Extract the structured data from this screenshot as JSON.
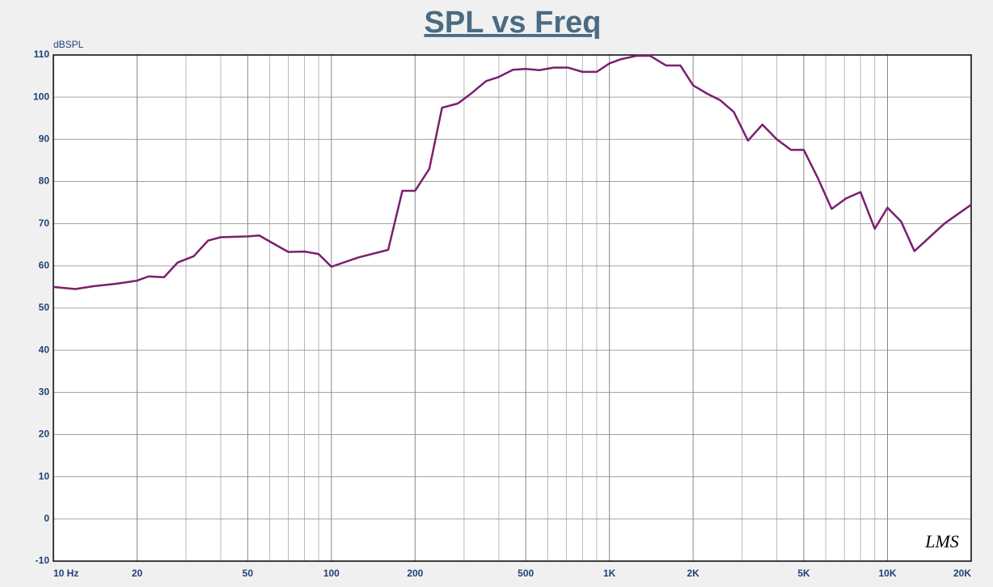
{
  "chart_data": {
    "type": "line",
    "title": "SPL vs Freq",
    "y_label": "dBSPL",
    "watermark": "LMS",
    "x_scale": "log",
    "grid": true,
    "color": "#7b1f6e",
    "x": [
      10,
      12,
      14,
      17,
      20,
      22,
      25,
      28,
      32,
      36,
      40,
      50,
      55,
      63,
      70,
      80,
      90,
      100,
      125,
      160,
      180,
      200,
      225,
      250,
      285,
      320,
      360,
      400,
      450,
      500,
      560,
      630,
      710,
      800,
      900,
      1000,
      1100,
      1250,
      1400,
      1600,
      1800,
      2000,
      2250,
      2500,
      2800,
      3150,
      3550,
      4000,
      4500,
      5000,
      5600,
      6300,
      7100,
      8000,
      9000,
      10000,
      11200,
      12500,
      16000,
      20000
    ],
    "values": [
      55,
      54.5,
      55.2,
      55.8,
      56.5,
      57.5,
      57.3,
      60.8,
      62.3,
      66,
      66.8,
      67,
      67.2,
      65,
      63.3,
      63.4,
      62.8,
      59.8,
      62,
      63.8,
      77.8,
      77.8,
      83,
      97.5,
      98.5,
      101,
      103.8,
      104.8,
      106.5,
      106.7,
      106.4,
      107,
      107,
      106,
      106,
      108,
      109,
      109.8,
      109.8,
      107.5,
      107.5,
      102.8,
      100.8,
      99.3,
      96.5,
      89.7,
      93.5,
      90,
      87.5,
      87.5,
      81,
      73.5,
      76,
      77.5,
      68.8,
      73.8,
      70.5,
      63.5,
      70,
      74.5
    ],
    "xlim": [
      10,
      20000
    ],
    "ylim": [
      -10,
      110
    ],
    "xticks": [
      {
        "value": 10,
        "label": "10  Hz"
      },
      20,
      50,
      100,
      200,
      500,
      {
        "value": 1000,
        "label": "1K"
      },
      {
        "value": 2000,
        "label": "2K"
      },
      {
        "value": 5000,
        "label": "5K"
      },
      {
        "value": 10000,
        "label": "10K"
      },
      {
        "value": 20000,
        "label": "20K"
      }
    ],
    "xgrid": [
      30,
      40,
      60,
      70,
      80,
      90,
      300,
      400,
      600,
      700,
      800,
      900,
      3000,
      4000,
      6000,
      7000,
      8000,
      9000
    ],
    "yticks": [
      -10,
      0,
      10,
      20,
      30,
      40,
      50,
      60,
      70,
      80,
      90,
      100,
      110
    ]
  }
}
